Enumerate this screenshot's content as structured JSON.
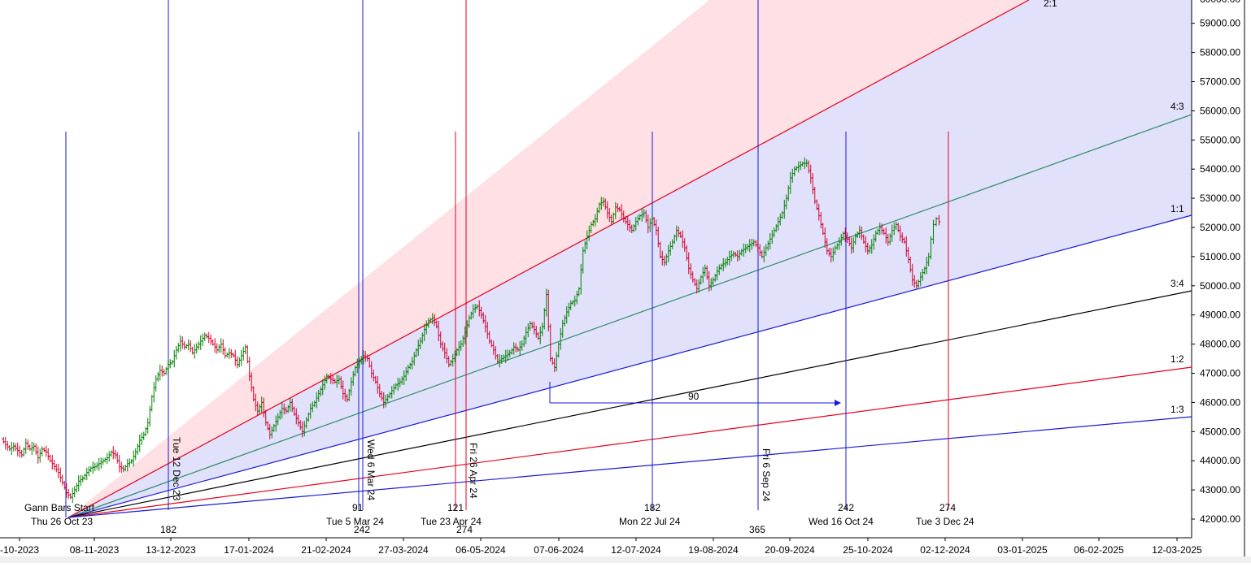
{
  "chart_data": {
    "type": "candlestick",
    "y_axis": {
      "ticks": [
        "59000.00",
        "58000.00",
        "57000.00",
        "56000.00",
        "55000.00",
        "54000.00",
        "53000.00",
        "52000.00",
        "51000.00",
        "50000.00",
        "49000.00",
        "48000.00",
        "47000.00",
        "46000.00",
        "45000.00",
        "44000.00",
        "43000.00",
        "42000.00"
      ],
      "top_partial_label": "60000.00",
      "range": [
        41600,
        60300
      ]
    },
    "x_axis": {
      "ticks": [
        "-10-2023",
        "08-11-2023",
        "13-12-2023",
        "17-01-2024",
        "21-02-2024",
        "27-03-2024",
        "06-05-2024",
        "07-06-2024",
        "12-07-2024",
        "19-08-2024",
        "20-09-2024",
        "25-10-2024",
        "02-12-2024",
        "03-01-2025",
        "06-02-2025",
        "12-03-2025"
      ]
    },
    "colors": {
      "up_bar": "#008000",
      "down_bar": "#d0002a",
      "upper_zone": "#ffe0e4",
      "lower_zone": "#e1e1fc",
      "blue_line": "#1a1ad6",
      "red_line": "#e6001c",
      "green_line": "#2e8b6a",
      "black_line": "#000000"
    },
    "gann_start": {
      "label": "Gann Bars Start",
      "date_label": "Thu 26 Oct 23",
      "price": 42000
    },
    "gann_fan": [
      {
        "ratio": "2:1",
        "color": "red"
      },
      {
        "ratio": "4:3",
        "color": "green"
      },
      {
        "ratio": "1:1",
        "color": "blue"
      },
      {
        "ratio": "3:4",
        "color": "black"
      },
      {
        "ratio": "1:2",
        "color": "red"
      },
      {
        "ratio": "1:3",
        "color": "blue"
      }
    ],
    "time_cycles": {
      "blue_bottom_numbers": [
        "182",
        "242",
        "365"
      ],
      "red_bottom_numbers": [
        "274"
      ],
      "cycle_labels": [
        "91",
        "121",
        "182",
        "242",
        "274"
      ],
      "date_labels": [
        "Tue 5 Mar 24",
        "Tue 23 Apr 24",
        "Mon 22 Jul 24",
        "Wed 16 Oct 24",
        "Tue 3 Dec 24"
      ],
      "vertical_date_labels": [
        "Tue 12 Dec 23",
        "Wed 6 Mar 24",
        "Fri 26 Apr 24",
        "Fri 6 Sep 24"
      ]
    },
    "arrow_label": "90",
    "price_path": [
      [
        0,
        44750
      ],
      [
        5,
        44550
      ],
      [
        10,
        44400
      ],
      [
        15,
        44500
      ],
      [
        20,
        44350
      ],
      [
        25,
        44200
      ],
      [
        30,
        44600
      ],
      [
        35,
        44400
      ],
      [
        40,
        44500
      ],
      [
        45,
        44100
      ],
      [
        50,
        44400
      ],
      [
        55,
        44300
      ],
      [
        60,
        44000
      ],
      [
        65,
        43800
      ],
      [
        70,
        43600
      ],
      [
        75,
        43250
      ],
      [
        80,
        42900
      ],
      [
        85,
        42750
      ],
      [
        90,
        43000
      ],
      [
        95,
        43300
      ],
      [
        100,
        43400
      ],
      [
        105,
        43600
      ],
      [
        110,
        43750
      ],
      [
        115,
        43800
      ],
      [
        120,
        43900
      ],
      [
        125,
        44000
      ],
      [
        130,
        44100
      ],
      [
        135,
        44300
      ],
      [
        140,
        44200
      ],
      [
        145,
        43800
      ],
      [
        150,
        43700
      ],
      [
        155,
        43900
      ],
      [
        160,
        44000
      ],
      [
        165,
        44300
      ],
      [
        170,
        44700
      ],
      [
        175,
        44900
      ],
      [
        180,
        45300
      ],
      [
        185,
        46200
      ],
      [
        190,
        46800
      ],
      [
        195,
        47100
      ],
      [
        200,
        47000
      ],
      [
        205,
        47300
      ],
      [
        210,
        47400
      ],
      [
        215,
        47800
      ],
      [
        220,
        48100
      ],
      [
        225,
        47900
      ],
      [
        230,
        48000
      ],
      [
        235,
        47700
      ],
      [
        240,
        47900
      ],
      [
        245,
        48100
      ],
      [
        250,
        48300
      ],
      [
        255,
        48200
      ],
      [
        260,
        48000
      ],
      [
        265,
        47800
      ],
      [
        270,
        48000
      ],
      [
        275,
        47600
      ],
      [
        280,
        47700
      ],
      [
        285,
        47600
      ],
      [
        290,
        47300
      ],
      [
        295,
        47600
      ],
      [
        300,
        47900
      ],
      [
        305,
        46900
      ],
      [
        310,
        46100
      ],
      [
        315,
        45700
      ],
      [
        320,
        46000
      ],
      [
        325,
        45300
      ],
      [
        330,
        44900
      ],
      [
        335,
        45200
      ],
      [
        340,
        45500
      ],
      [
        345,
        45800
      ],
      [
        350,
        45700
      ],
      [
        355,
        46000
      ],
      [
        360,
        45600
      ],
      [
        365,
        45300
      ],
      [
        370,
        45000
      ],
      [
        375,
        45400
      ],
      [
        380,
        45800
      ],
      [
        385,
        46000
      ],
      [
        390,
        46300
      ],
      [
        395,
        46600
      ],
      [
        400,
        46900
      ],
      [
        405,
        46800
      ],
      [
        410,
        46700
      ],
      [
        415,
        46800
      ],
      [
        420,
        46300
      ],
      [
        425,
        46100
      ],
      [
        430,
        46700
      ],
      [
        435,
        47200
      ],
      [
        440,
        47400
      ],
      [
        445,
        47600
      ],
      [
        450,
        47500
      ],
      [
        455,
        47000
      ],
      [
        460,
        46700
      ],
      [
        465,
        46300
      ],
      [
        470,
        46000
      ],
      [
        475,
        46200
      ],
      [
        480,
        46400
      ],
      [
        485,
        46600
      ],
      [
        490,
        46700
      ],
      [
        495,
        46900
      ],
      [
        500,
        47200
      ],
      [
        505,
        47400
      ],
      [
        510,
        47800
      ],
      [
        515,
        48100
      ],
      [
        520,
        48500
      ],
      [
        525,
        48800
      ],
      [
        530,
        48900
      ],
      [
        535,
        48600
      ],
      [
        540,
        48000
      ],
      [
        545,
        47700
      ],
      [
        550,
        47300
      ],
      [
        555,
        47500
      ],
      [
        560,
        47800
      ],
      [
        565,
        48000
      ],
      [
        570,
        48400
      ],
      [
        575,
        48900
      ],
      [
        580,
        49200
      ],
      [
        585,
        49300
      ],
      [
        590,
        49000
      ],
      [
        595,
        48600
      ],
      [
        600,
        48100
      ],
      [
        605,
        47800
      ],
      [
        610,
        47400
      ],
      [
        615,
        47500
      ],
      [
        620,
        47600
      ],
      [
        625,
        47700
      ],
      [
        630,
        47900
      ],
      [
        635,
        47800
      ],
      [
        640,
        48000
      ],
      [
        645,
        48400
      ],
      [
        650,
        48700
      ],
      [
        655,
        48500
      ],
      [
        660,
        48200
      ],
      [
        665,
        48600
      ],
      [
        670,
        49700
      ],
      [
        675,
        47500
      ],
      [
        680,
        47200
      ],
      [
        685,
        48000
      ],
      [
        690,
        48700
      ],
      [
        695,
        49100
      ],
      [
        700,
        49400
      ],
      [
        705,
        49500
      ],
      [
        710,
        49900
      ],
      [
        715,
        51200
      ],
      [
        720,
        51700
      ],
      [
        725,
        52100
      ],
      [
        730,
        52300
      ],
      [
        735,
        52800
      ],
      [
        740,
        52900
      ],
      [
        745,
        52500
      ],
      [
        750,
        52200
      ],
      [
        755,
        52700
      ],
      [
        760,
        52600
      ],
      [
        765,
        52300
      ],
      [
        770,
        52100
      ],
      [
        775,
        51900
      ],
      [
        780,
        52200
      ],
      [
        785,
        52400
      ],
      [
        790,
        52500
      ],
      [
        795,
        52000
      ],
      [
        800,
        52300
      ],
      [
        805,
        51900
      ],
      [
        810,
        51000
      ],
      [
        815,
        50800
      ],
      [
        820,
        51200
      ],
      [
        825,
        51500
      ],
      [
        830,
        51900
      ],
      [
        835,
        51700
      ],
      [
        840,
        51300
      ],
      [
        845,
        50600
      ],
      [
        850,
        50200
      ],
      [
        855,
        49900
      ],
      [
        860,
        50300
      ],
      [
        865,
        50600
      ],
      [
        870,
        50000
      ],
      [
        875,
        50200
      ],
      [
        880,
        50500
      ],
      [
        885,
        50700
      ],
      [
        890,
        50800
      ],
      [
        895,
        51000
      ],
      [
        900,
        51100
      ],
      [
        905,
        51000
      ],
      [
        910,
        51200
      ],
      [
        915,
        51300
      ],
      [
        920,
        51400
      ],
      [
        925,
        51500
      ],
      [
        930,
        51300
      ],
      [
        935,
        51000
      ],
      [
        940,
        51300
      ],
      [
        945,
        51600
      ],
      [
        950,
        51900
      ],
      [
        955,
        52200
      ],
      [
        960,
        52500
      ],
      [
        965,
        53000
      ],
      [
        970,
        53700
      ],
      [
        975,
        54000
      ],
      [
        980,
        54100
      ],
      [
        985,
        54200
      ],
      [
        990,
        54200
      ],
      [
        995,
        53700
      ],
      [
        1000,
        52900
      ],
      [
        1005,
        52400
      ],
      [
        1010,
        51800
      ],
      [
        1015,
        51200
      ],
      [
        1020,
        51000
      ],
      [
        1025,
        51300
      ],
      [
        1030,
        51500
      ],
      [
        1035,
        51800
      ],
      [
        1040,
        51600
      ],
      [
        1045,
        51300
      ],
      [
        1050,
        51700
      ],
      [
        1055,
        51900
      ],
      [
        1060,
        51500
      ],
      [
        1065,
        51200
      ],
      [
        1070,
        51400
      ],
      [
        1075,
        51800
      ],
      [
        1080,
        52000
      ],
      [
        1085,
        51800
      ],
      [
        1090,
        51500
      ],
      [
        1095,
        51900
      ],
      [
        1100,
        52100
      ],
      [
        1105,
        51700
      ],
      [
        1110,
        51500
      ],
      [
        1115,
        50900
      ],
      [
        1120,
        50200
      ],
      [
        1125,
        50000
      ],
      [
        1130,
        50300
      ],
      [
        1135,
        50600
      ],
      [
        1140,
        51000
      ],
      [
        1143,
        51600
      ],
      [
        1146,
        52100
      ],
      [
        1150,
        52300
      ],
      [
        1153,
        52200
      ]
    ]
  }
}
